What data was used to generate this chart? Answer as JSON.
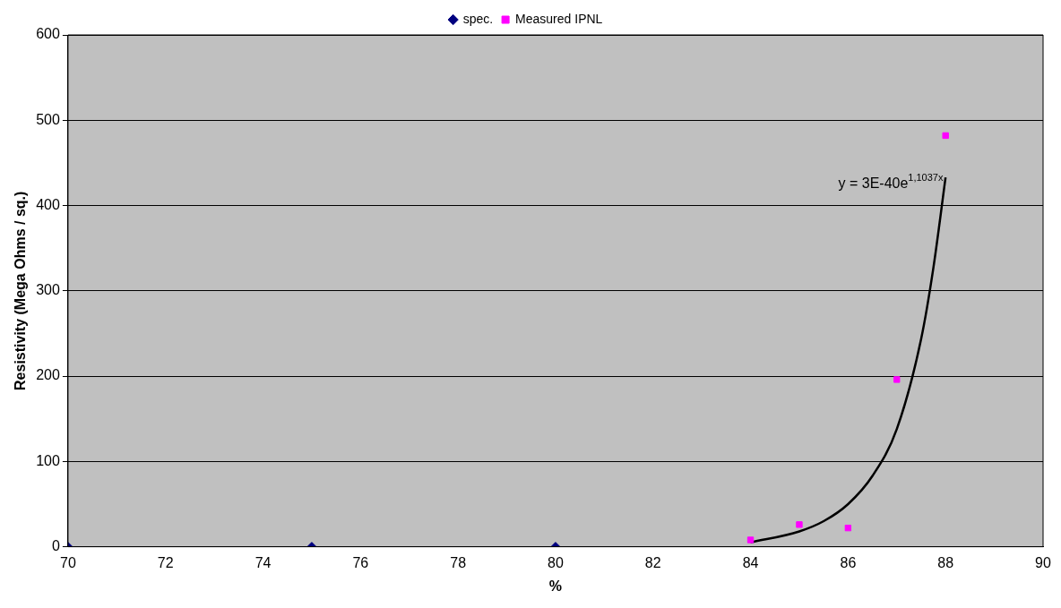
{
  "chart_data": {
    "type": "scatter",
    "xlabel": "%",
    "ylabel": "Resistivity (Mega Ohms / sq.)",
    "xlim": [
      70,
      90
    ],
    "xticks": [
      70,
      72,
      74,
      76,
      78,
      80,
      82,
      84,
      86,
      88,
      90
    ],
    "ylim": [
      0,
      600
    ],
    "yticks": [
      0,
      100,
      200,
      300,
      400,
      500,
      600
    ],
    "grid": "y",
    "legend": "top",
    "series": [
      {
        "name": "spec.",
        "color": "#000080",
        "marker": "diamond",
        "x": [
          70,
          75,
          80
        ],
        "values": [
          0,
          0,
          0
        ]
      },
      {
        "name": "Measured IPNL",
        "color": "#ff00ff",
        "marker": "square",
        "x": [
          84,
          85,
          86,
          87,
          88
        ],
        "values": [
          8,
          26,
          22,
          196,
          482
        ]
      },
      {
        "type": "line",
        "color": "#000000",
        "marker": "none",
        "x": [
          84,
          85,
          85.5,
          86,
          86.5,
          87,
          87.5,
          87.75,
          88
        ],
        "values": [
          5,
          18,
          30,
          50,
          83,
          138,
          244,
          327,
          433
        ]
      }
    ],
    "annotations": [
      "y = 3E-40e$^{1,1037x}$"
    ]
  }
}
